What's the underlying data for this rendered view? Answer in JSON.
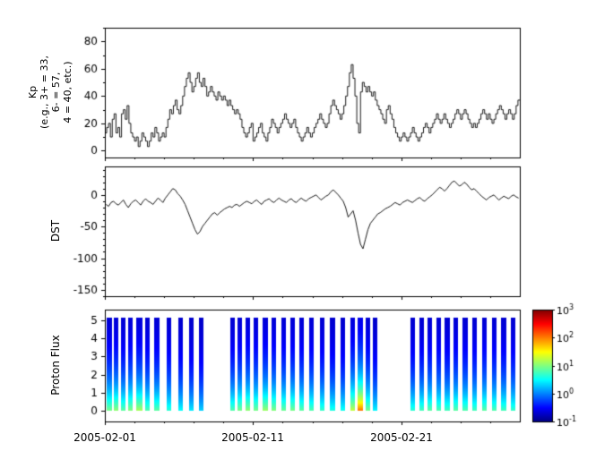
{
  "figure": {
    "bg": "#ffffff",
    "line_color": "#000000",
    "colormap": "jet"
  },
  "x_axis": {
    "xlim_days": [
      0,
      28
    ],
    "tick_days": [
      0,
      10,
      20
    ],
    "tick_labels": [
      "2005-02-01",
      "2005-02-11",
      "2005-02-21"
    ],
    "minor_step_days": 2
  },
  "chart_data": [
    {
      "type": "line",
      "name": "kp-index",
      "step": true,
      "ylabel_lines": [
        "Kp",
        "(e.g., 3+ = 33,",
        "6- = 57,",
        "4 = 40, etc.)"
      ],
      "yticks": [
        0,
        20,
        40,
        60,
        80
      ],
      "yminor": 10,
      "ylim": [
        -5,
        90
      ],
      "dt_days": 0.125,
      "values": [
        13,
        17,
        20,
        10,
        23,
        27,
        13,
        17,
        10,
        27,
        30,
        23,
        33,
        20,
        13,
        10,
        7,
        10,
        3,
        7,
        13,
        10,
        7,
        3,
        7,
        13,
        10,
        17,
        13,
        7,
        10,
        13,
        10,
        17,
        23,
        30,
        27,
        33,
        37,
        30,
        27,
        33,
        40,
        47,
        53,
        57,
        50,
        43,
        47,
        53,
        57,
        50,
        47,
        53,
        47,
        40,
        43,
        47,
        43,
        40,
        37,
        43,
        40,
        37,
        40,
        37,
        33,
        37,
        33,
        30,
        27,
        30,
        27,
        23,
        17,
        13,
        10,
        13,
        17,
        20,
        7,
        10,
        13,
        17,
        20,
        13,
        10,
        7,
        13,
        17,
        23,
        20,
        17,
        13,
        17,
        20,
        23,
        27,
        23,
        20,
        17,
        20,
        23,
        17,
        13,
        10,
        7,
        10,
        13,
        17,
        13,
        10,
        13,
        17,
        20,
        23,
        27,
        23,
        20,
        17,
        20,
        27,
        33,
        37,
        33,
        30,
        27,
        23,
        27,
        33,
        40,
        47,
        57,
        63,
        53,
        40,
        20,
        13,
        43,
        50,
        47,
        43,
        47,
        43,
        40,
        43,
        37,
        33,
        30,
        27,
        23,
        20,
        30,
        33,
        27,
        23,
        17,
        13,
        10,
        7,
        10,
        13,
        10,
        7,
        10,
        13,
        17,
        13,
        10,
        7,
        10,
        13,
        17,
        20,
        17,
        13,
        17,
        20,
        23,
        27,
        23,
        20,
        23,
        27,
        23,
        20,
        17,
        20,
        23,
        27,
        30,
        27,
        23,
        27,
        30,
        27,
        23,
        20,
        17,
        20,
        17,
        20,
        23,
        27,
        30,
        27,
        23,
        27,
        23,
        20,
        23,
        27,
        30,
        33,
        30,
        27,
        23,
        27,
        30,
        27,
        23,
        27,
        33,
        37
      ]
    },
    {
      "type": "line",
      "name": "dst-index",
      "ylabel": "DST",
      "yticks": [
        0,
        -50,
        -100,
        -150
      ],
      "yminor": 10,
      "ylim": [
        -160,
        45
      ],
      "dt_days": 0.16667,
      "values": [
        -15,
        -18,
        -12,
        -10,
        -14,
        -16,
        -12,
        -8,
        -15,
        -20,
        -14,
        -10,
        -8,
        -12,
        -16,
        -10,
        -6,
        -10,
        -12,
        -15,
        -10,
        -5,
        -8,
        -12,
        -5,
        0,
        5,
        10,
        8,
        2,
        -2,
        -8,
        -15,
        -25,
        -35,
        -45,
        -55,
        -62,
        -58,
        -50,
        -45,
        -40,
        -35,
        -30,
        -28,
        -32,
        -28,
        -25,
        -22,
        -20,
        -18,
        -20,
        -16,
        -15,
        -18,
        -15,
        -12,
        -10,
        -12,
        -14,
        -10,
        -8,
        -12,
        -15,
        -10,
        -8,
        -6,
        -10,
        -12,
        -8,
        -5,
        -8,
        -10,
        -12,
        -8,
        -6,
        -10,
        -12,
        -8,
        -5,
        -8,
        -10,
        -6,
        -4,
        -2,
        0,
        -4,
        -8,
        -5,
        -2,
        0,
        5,
        8,
        4,
        0,
        -5,
        -10,
        -20,
        -35,
        -30,
        -25,
        -40,
        -60,
        -78,
        -85,
        -70,
        -55,
        -45,
        -40,
        -35,
        -30,
        -28,
        -25,
        -22,
        -20,
        -18,
        -15,
        -12,
        -14,
        -16,
        -12,
        -10,
        -8,
        -10,
        -12,
        -9,
        -6,
        -4,
        -8,
        -10,
        -6,
        -3,
        0,
        4,
        8,
        12,
        10,
        6,
        10,
        15,
        20,
        22,
        18,
        14,
        16,
        20,
        17,
        12,
        8,
        10,
        6,
        2,
        -2,
        -5,
        -8,
        -4,
        -2,
        0,
        -4,
        -8,
        -5,
        -2,
        -4,
        -6,
        -2,
        0,
        -3,
        -5
      ]
    },
    {
      "type": "heatmap",
      "name": "proton-flux-spectrogram",
      "ylabel": "Proton Flux",
      "yticks": [
        0,
        1,
        2,
        3,
        4,
        5
      ],
      "yminor": null,
      "ylim": [
        -0.6,
        5.6
      ],
      "bar_top": 5.2,
      "top_log": -0.8,
      "decay": 2.0,
      "bars": [
        [
          0.15,
          0.32,
          1.0
        ],
        [
          0.6,
          0.32,
          1.1
        ],
        [
          1.1,
          0.28,
          0.9
        ],
        [
          1.6,
          0.3,
          1.05
        ],
        [
          2.1,
          0.42,
          1.2
        ],
        [
          2.7,
          0.3,
          0.85
        ],
        [
          3.35,
          0.32,
          0.9
        ],
        [
          4.15,
          0.3,
          0.7
        ],
        [
          4.95,
          0.32,
          0.55
        ],
        [
          5.7,
          0.28,
          0.45
        ],
        [
          6.35,
          0.3,
          0.35
        ],
        [
          8.45,
          0.3,
          0.85
        ],
        [
          8.95,
          0.3,
          1.0
        ],
        [
          9.5,
          0.32,
          1.1
        ],
        [
          10.05,
          0.3,
          1.0
        ],
        [
          10.65,
          0.34,
          1.15
        ],
        [
          11.25,
          0.32,
          1.05
        ],
        [
          11.9,
          0.3,
          0.95
        ],
        [
          12.5,
          0.32,
          1.0
        ],
        [
          13.15,
          0.3,
          0.9
        ],
        [
          13.8,
          0.32,
          0.85
        ],
        [
          14.5,
          0.3,
          0.75
        ],
        [
          15.2,
          0.32,
          0.65
        ],
        [
          15.9,
          0.3,
          0.6
        ],
        [
          16.55,
          0.34,
          1.3
        ],
        [
          17.05,
          0.36,
          2.1
        ],
        [
          17.6,
          0.3,
          1.0
        ],
        [
          18.1,
          0.28,
          0.5
        ],
        [
          20.65,
          0.3,
          0.7
        ],
        [
          21.2,
          0.3,
          0.8
        ],
        [
          21.75,
          0.32,
          0.9
        ],
        [
          22.35,
          0.3,
          0.85
        ],
        [
          22.95,
          0.32,
          0.8
        ],
        [
          23.55,
          0.3,
          0.9
        ],
        [
          24.15,
          0.32,
          0.85
        ],
        [
          24.8,
          0.3,
          0.8
        ],
        [
          25.45,
          0.32,
          0.9
        ],
        [
          26.1,
          0.3,
          0.85
        ],
        [
          26.75,
          0.32,
          0.8
        ],
        [
          27.4,
          0.3,
          0.75
        ]
      ],
      "colorbar": {
        "scale": "log",
        "base": "10",
        "vmin_log": -1,
        "vmax_log": 3,
        "tick_exponents": [
          3,
          2,
          1,
          0,
          -1
        ]
      }
    }
  ]
}
